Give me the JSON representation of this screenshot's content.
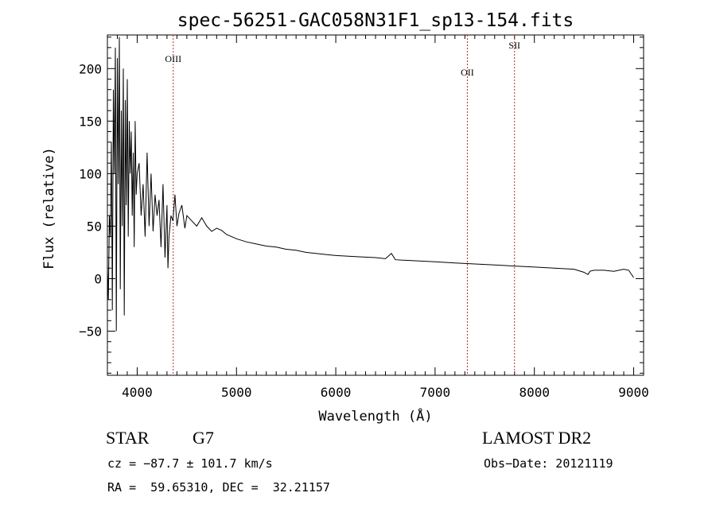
{
  "chart_data": {
    "type": "line",
    "title": "spec-56251-GAC058N31F1_sp13-154.fits",
    "xlabel": "Wavelength (Å)",
    "ylabel": "Flux (relative)",
    "xlim": [
      3700,
      9100
    ],
    "ylim": [
      -92,
      232
    ],
    "x_ticks": [
      4000,
      5000,
      6000,
      7000,
      8000,
      9000
    ],
    "y_ticks": [
      -50,
      0,
      50,
      100,
      150,
      200
    ],
    "x_tick_labels": [
      "4000",
      "5000",
      "6000",
      "7000",
      "8000",
      "9000"
    ],
    "y_tick_labels": [
      "−50",
      "0",
      "50",
      "100",
      "150",
      "200"
    ],
    "grid": false,
    "line_color": "#000000",
    "spectrum": {
      "x": [
        3700,
        3710,
        3720,
        3730,
        3740,
        3750,
        3760,
        3770,
        3780,
        3790,
        3800,
        3810,
        3820,
        3830,
        3840,
        3850,
        3860,
        3870,
        3880,
        3890,
        3900,
        3910,
        3920,
        3930,
        3940,
        3950,
        3960,
        3970,
        3980,
        3990,
        4000,
        4020,
        4040,
        4060,
        4080,
        4100,
        4120,
        4140,
        4160,
        4180,
        4200,
        4220,
        4240,
        4260,
        4280,
        4300,
        4310,
        4320,
        4340,
        4360,
        4380,
        4400,
        4420,
        4450,
        4480,
        4500,
        4550,
        4600,
        4650,
        4700,
        4750,
        4800,
        4850,
        4900,
        4950,
        5000,
        5100,
        5200,
        5300,
        5400,
        5500,
        5600,
        5700,
        5800,
        5900,
        6000,
        6200,
        6400,
        6500,
        6560,
        6600,
        6800,
        7000,
        7200,
        7400,
        7600,
        7800,
        8000,
        8200,
        8400,
        8500,
        8520,
        8540,
        8560,
        8600,
        8700,
        8800,
        8900,
        8950,
        9000
      ],
      "y": [
        10,
        -20,
        60,
        40,
        130,
        -30,
        180,
        100,
        220,
        -50,
        210,
        90,
        230,
        -10,
        160,
        50,
        200,
        -35,
        170,
        70,
        190,
        40,
        150,
        100,
        140,
        60,
        120,
        30,
        150,
        80,
        100,
        110,
        60,
        90,
        40,
        120,
        50,
        100,
        45,
        80,
        60,
        75,
        30,
        90,
        20,
        70,
        10,
        40,
        60,
        55,
        80,
        50,
        62,
        70,
        48,
        60,
        55,
        50,
        58,
        50,
        45,
        48,
        46,
        42,
        40,
        38,
        35,
        33,
        31,
        30,
        28,
        27,
        25,
        24,
        23,
        22,
        21,
        20,
        19,
        24,
        18,
        17,
        16,
        15,
        14,
        13,
        12,
        11,
        10,
        9,
        6,
        5,
        4,
        7,
        8,
        8,
        7,
        9,
        8,
        1
      ]
    },
    "lines": [
      {
        "label": "OIII",
        "wavelength": 4363
      },
      {
        "label": "OII",
        "wavelength": 7325
      },
      {
        "label": "SII",
        "wavelength": 7800
      }
    ],
    "line_marker_color": "#b03030"
  },
  "info": {
    "object_type": "STAR",
    "subclass": "G7",
    "survey": "LAMOST DR2",
    "cz_text": "cz = −87.7 ± 101.7 km/s",
    "obs_date_text": "Obs−Date: 20121119",
    "coords_text": "RA =  59.65310, DEC =  32.21157"
  }
}
